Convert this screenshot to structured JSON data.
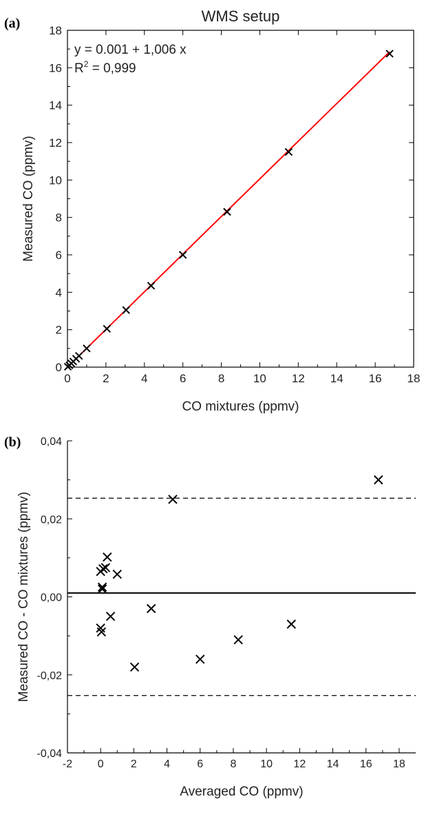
{
  "chart_data": [
    {
      "panel_label": "(a)",
      "type": "scatter",
      "title": "WMS setup",
      "xlabel": "CO mixtures (ppmv)",
      "ylabel": "Measured CO (ppmv)",
      "xlim": [
        0,
        18
      ],
      "ylim": [
        0,
        18
      ],
      "xticks": [
        0,
        2,
        4,
        6,
        8,
        10,
        12,
        14,
        16,
        18
      ],
      "yticks": [
        0,
        2,
        4,
        6,
        8,
        10,
        12,
        14,
        16,
        18
      ],
      "annotation_line1": "y = 0.001 + 1,006 x",
      "annotation_r2_prefix": "R",
      "annotation_r2_sup": "2",
      "annotation_r2_suffix": " = 0,999",
      "marker": "x",
      "series": [
        {
          "x": [
            0.02,
            0.1,
            0.2,
            0.3,
            0.45,
            0.6,
            1.0,
            2.05,
            3.05,
            4.35,
            6.0,
            8.3,
            11.5,
            16.75
          ],
          "y": [
            0.02,
            0.1,
            0.2,
            0.3,
            0.45,
            0.6,
            1.0,
            2.05,
            3.05,
            4.35,
            6.0,
            8.3,
            11.5,
            16.75
          ]
        }
      ],
      "fit_line": {
        "intercept": 0.001,
        "slope": 1.006,
        "x_range": [
          0,
          16.75
        ],
        "color": "#ff0000"
      }
    },
    {
      "panel_label": "(b)",
      "type": "scatter",
      "title": "",
      "xlabel": "Averaged CO (ppmv)",
      "ylabel": "Measured CO - CO mixtures (ppmv)",
      "xlim": [
        -2,
        19
      ],
      "ylim": [
        -0.04,
        0.04
      ],
      "xticks": [
        -2,
        0,
        2,
        4,
        6,
        8,
        10,
        12,
        14,
        16,
        18
      ],
      "xtick_labels": [
        "-2",
        "0",
        "2",
        "4",
        "6",
        "8",
        "10",
        "12",
        "14",
        "16",
        "18"
      ],
      "yticks": [
        -0.04,
        -0.02,
        0,
        0.02,
        0.04
      ],
      "ytick_labels": [
        "-0,04",
        "-0,02",
        "0,00",
        "0,02",
        "0,04"
      ],
      "marker": "x",
      "series": [
        {
          "x": [
            0.0,
            0.05,
            0.0,
            0.1,
            0.1,
            0.15,
            0.3,
            0.4,
            0.6,
            1.0,
            2.05,
            3.05,
            4.35,
            6.0,
            8.3,
            11.5,
            16.75
          ],
          "y": [
            -0.008,
            -0.009,
            0.0065,
            0.0025,
            0.002,
            0.0072,
            0.0075,
            0.0102,
            -0.005,
            0.0058,
            -0.018,
            -0.003,
            0.025,
            -0.016,
            -0.011,
            -0.007,
            0.03
          ]
        }
      ],
      "mean_line": 0.001,
      "limit_lines": [
        0.0253,
        -0.0253
      ]
    }
  ]
}
